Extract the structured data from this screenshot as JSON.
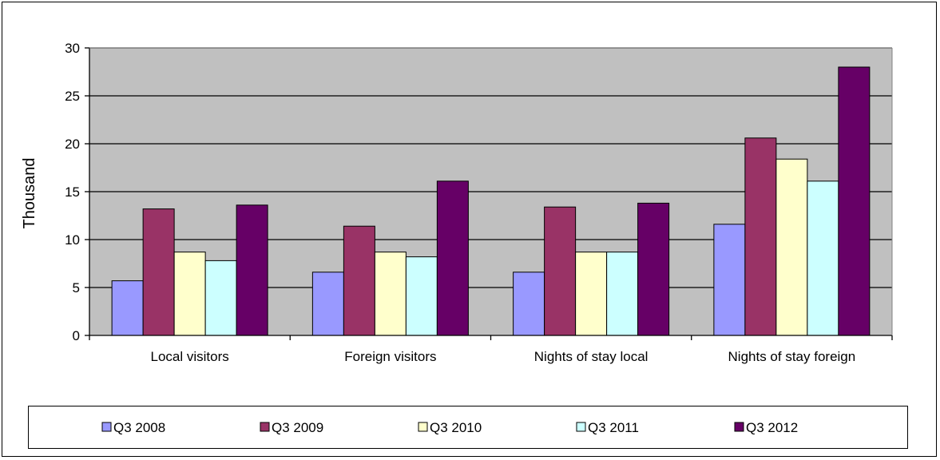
{
  "chart_data": {
    "type": "bar",
    "title": "",
    "xlabel": "",
    "ylabel": "Thousand",
    "ylim": [
      0,
      30
    ],
    "yticks": [
      0,
      5,
      10,
      15,
      20,
      25,
      30
    ],
    "grid": true,
    "legend_position": "bottom",
    "categories": [
      "Local visitors",
      "Foreign visitors",
      "Nights of stay local",
      "Nights of stay foreign"
    ],
    "series": [
      {
        "name": "Q3 2008",
        "color": "#9999ff",
        "values": [
          5.7,
          6.6,
          6.6,
          11.6
        ]
      },
      {
        "name": "Q3 2009",
        "color": "#993366",
        "values": [
          13.2,
          11.4,
          13.4,
          20.6
        ]
      },
      {
        "name": "Q3 2010",
        "color": "#ffffcc",
        "values": [
          8.7,
          8.7,
          8.7,
          18.4
        ]
      },
      {
        "name": "Q3 2011",
        "color": "#ccffff",
        "values": [
          7.8,
          8.2,
          8.7,
          16.1
        ]
      },
      {
        "name": "Q3 2012",
        "color": "#660066",
        "values": [
          13.6,
          16.1,
          13.8,
          28.0
        ]
      }
    ],
    "plot_background": "#c0c0c0"
  }
}
